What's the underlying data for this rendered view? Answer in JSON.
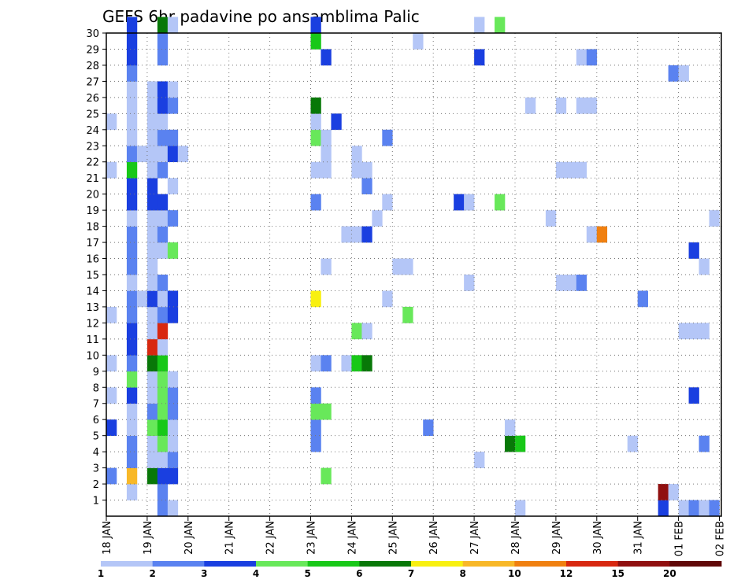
{
  "chart_data": {
    "type": "heatmap",
    "title": "GEFS 6hr padavine po ansamblima Palic",
    "xlabel": "",
    "ylabel": "",
    "x_tick_labels": [
      "18 JAN",
      "19 JAN",
      "20 JAN",
      "21 JAN",
      "22 JAN",
      "23 JAN",
      "24 JAN",
      "25 JAN",
      "26 JAN",
      "27 JAN",
      "28 JAN",
      "29 JAN",
      "30 JAN",
      "31 JAN",
      "01 FEB",
      "02 FEB"
    ],
    "y_tick_labels": [
      "1",
      "2",
      "3",
      "4",
      "5",
      "6",
      "7",
      "8",
      "9",
      "10",
      "11",
      "12",
      "13",
      "14",
      "15",
      "16",
      "17",
      "18",
      "19",
      "20",
      "21",
      "22",
      "23",
      "24",
      "25",
      "26",
      "27",
      "28",
      "29",
      "30"
    ],
    "x_range": [
      "18 JAN 00",
      "02 FEB 00"
    ],
    "x_step_hours": 6,
    "y_range": [
      0,
      30
    ],
    "grid": true,
    "legend_position": "bottom",
    "legend": {
      "labels": [
        "1",
        "2",
        "3",
        "4",
        "5",
        "6",
        "7",
        "8",
        "10",
        "12",
        "15",
        "20"
      ],
      "colors": [
        "#b4c6f7",
        "#5a82f0",
        "#1a3fe0",
        "#68e85a",
        "#18c818",
        "#087808",
        "#f8f010",
        "#f8b828",
        "#f08010",
        "#d82810",
        "#901010",
        "#600808"
      ]
    },
    "cells": [
      {
        "t": "18 JAN 00",
        "m": 5,
        "c": 3
      },
      {
        "t": "18 JAN 00",
        "m": 7,
        "c": 1
      },
      {
        "t": "18 JAN 00",
        "m": 9,
        "c": 1
      },
      {
        "t": "18 JAN 00",
        "m": 12,
        "c": 1
      },
      {
        "t": "18 JAN 00",
        "m": 21,
        "c": 1
      },
      {
        "t": "18 JAN 00",
        "m": 24,
        "c": 1
      },
      {
        "t": "18 JAN 00",
        "m": 2,
        "c": 2
      },
      {
        "t": "18 JAN 12",
        "m": 1,
        "c": 1
      },
      {
        "t": "18 JAN 12",
        "m": 2,
        "c": 8
      },
      {
        "t": "18 JAN 12",
        "m": 3,
        "c": 2
      },
      {
        "t": "18 JAN 12",
        "m": 4,
        "c": 2
      },
      {
        "t": "18 JAN 12",
        "m": 5,
        "c": 1
      },
      {
        "t": "18 JAN 12",
        "m": 6,
        "c": 1
      },
      {
        "t": "18 JAN 12",
        "m": 7,
        "c": 3
      },
      {
        "t": "18 JAN 12",
        "m": 8,
        "c": 4
      },
      {
        "t": "18 JAN 12",
        "m": 9,
        "c": 2
      },
      {
        "t": "18 JAN 12",
        "m": 10,
        "c": 3
      },
      {
        "t": "18 JAN 12",
        "m": 11,
        "c": 3
      },
      {
        "t": "18 JAN 12",
        "m": 12,
        "c": 2
      },
      {
        "t": "18 JAN 12",
        "m": 13,
        "c": 2
      },
      {
        "t": "18 JAN 12",
        "m": 14,
        "c": 1
      },
      {
        "t": "18 JAN 12",
        "m": 15,
        "c": 2
      },
      {
        "t": "18 JAN 12",
        "m": 16,
        "c": 2
      },
      {
        "t": "18 JAN 12",
        "m": 17,
        "c": 2
      },
      {
        "t": "18 JAN 12",
        "m": 18,
        "c": 1
      },
      {
        "t": "18 JAN 12",
        "m": 19,
        "c": 3
      },
      {
        "t": "18 JAN 12",
        "m": 20,
        "c": 3
      },
      {
        "t": "18 JAN 12",
        "m": 21,
        "c": 5
      },
      {
        "t": "18 JAN 12",
        "m": 22,
        "c": 2
      },
      {
        "t": "18 JAN 12",
        "m": 23,
        "c": 1
      },
      {
        "t": "18 JAN 12",
        "m": 24,
        "c": 1
      },
      {
        "t": "18 JAN 12",
        "m": 25,
        "c": 1
      },
      {
        "t": "18 JAN 12",
        "m": 26,
        "c": 1
      },
      {
        "t": "18 JAN 12",
        "m": 27,
        "c": 2
      },
      {
        "t": "18 JAN 12",
        "m": 28,
        "c": 3
      },
      {
        "t": "18 JAN 12",
        "m": 29,
        "c": 3
      },
      {
        "t": "18 JAN 12",
        "m": 30,
        "c": 3
      },
      {
        "t": "18 JAN 18",
        "m": 13,
        "c": 1
      },
      {
        "t": "18 JAN 18",
        "m": 22,
        "c": 1
      },
      {
        "t": "19 JAN 00",
        "m": 2,
        "c": 6
      },
      {
        "t": "19 JAN 00",
        "m": 3,
        "c": 1
      },
      {
        "t": "19 JAN 00",
        "m": 4,
        "c": 1
      },
      {
        "t": "19 JAN 00",
        "m": 5,
        "c": 4
      },
      {
        "t": "19 JAN 00",
        "m": 6,
        "c": 2
      },
      {
        "t": "19 JAN 00",
        "m": 7,
        "c": 1
      },
      {
        "t": "19 JAN 00",
        "m": 8,
        "c": 1
      },
      {
        "t": "19 JAN 00",
        "m": 9,
        "c": 6
      },
      {
        "t": "19 JAN 00",
        "m": 10,
        "c": 10
      },
      {
        "t": "19 JAN 00",
        "m": 11,
        "c": 1
      },
      {
        "t": "19 JAN 00",
        "m": 12,
        "c": 1
      },
      {
        "t": "19 JAN 00",
        "m": 13,
        "c": 3
      },
      {
        "t": "19 JAN 00",
        "m": 14,
        "c": 1
      },
      {
        "t": "19 JAN 00",
        "m": 15,
        "c": 1
      },
      {
        "t": "19 JAN 00",
        "m": 16,
        "c": 1
      },
      {
        "t": "19 JAN 00",
        "m": 17,
        "c": 1
      },
      {
        "t": "19 JAN 00",
        "m": 18,
        "c": 1
      },
      {
        "t": "19 JAN 00",
        "m": 19,
        "c": 3
      },
      {
        "t": "19 JAN 00",
        "m": 20,
        "c": 3
      },
      {
        "t": "19 JAN 00",
        "m": 21,
        "c": 1
      },
      {
        "t": "19 JAN 00",
        "m": 22,
        "c": 1
      },
      {
        "t": "19 JAN 00",
        "m": 23,
        "c": 1
      },
      {
        "t": "19 JAN 00",
        "m": 24,
        "c": 1
      },
      {
        "t": "19 JAN 00",
        "m": 25,
        "c": 1
      },
      {
        "t": "19 JAN 00",
        "m": 26,
        "c": 1
      },
      {
        "t": "19 JAN 06",
        "m": 0,
        "c": 2
      },
      {
        "t": "19 JAN 06",
        "m": 1,
        "c": 2
      },
      {
        "t": "19 JAN 06",
        "m": 2,
        "c": 3
      },
      {
        "t": "19 JAN 06",
        "m": 3,
        "c": 1
      },
      {
        "t": "19 JAN 06",
        "m": 4,
        "c": 4
      },
      {
        "t": "19 JAN 06",
        "m": 5,
        "c": 5
      },
      {
        "t": "19 JAN 06",
        "m": 6,
        "c": 4
      },
      {
        "t": "19 JAN 06",
        "m": 7,
        "c": 4
      },
      {
        "t": "19 JAN 06",
        "m": 8,
        "c": 4
      },
      {
        "t": "19 JAN 06",
        "m": 9,
        "c": 5
      },
      {
        "t": "19 JAN 06",
        "m": 10,
        "c": 1
      },
      {
        "t": "19 JAN 06",
        "m": 11,
        "c": 10
      },
      {
        "t": "19 JAN 06",
        "m": 12,
        "c": 2
      },
      {
        "t": "19 JAN 06",
        "m": 13,
        "c": 1
      },
      {
        "t": "19 JAN 06",
        "m": 14,
        "c": 2
      },
      {
        "t": "19 JAN 06",
        "m": 16,
        "c": 1
      },
      {
        "t": "19 JAN 06",
        "m": 17,
        "c": 2
      },
      {
        "t": "19 JAN 06",
        "m": 18,
        "c": 1
      },
      {
        "t": "19 JAN 06",
        "m": 19,
        "c": 3
      },
      {
        "t": "19 JAN 06",
        "m": 21,
        "c": 2
      },
      {
        "t": "19 JAN 06",
        "m": 22,
        "c": 1
      },
      {
        "t": "19 JAN 06",
        "m": 23,
        "c": 2
      },
      {
        "t": "19 JAN 06",
        "m": 24,
        "c": 1
      },
      {
        "t": "19 JAN 06",
        "m": 25,
        "c": 3
      },
      {
        "t": "19 JAN 06",
        "m": 26,
        "c": 3
      },
      {
        "t": "19 JAN 06",
        "m": 28,
        "c": 2
      },
      {
        "t": "19 JAN 06",
        "m": 29,
        "c": 2
      },
      {
        "t": "19 JAN 06",
        "m": 30,
        "c": 6
      },
      {
        "t": "19 JAN 12",
        "m": 0,
        "c": 1
      },
      {
        "t": "19 JAN 12",
        "m": 2,
        "c": 3
      },
      {
        "t": "19 JAN 12",
        "m": 3,
        "c": 2
      },
      {
        "t": "19 JAN 12",
        "m": 4,
        "c": 1
      },
      {
        "t": "19 JAN 12",
        "m": 5,
        "c": 1
      },
      {
        "t": "19 JAN 12",
        "m": 6,
        "c": 2
      },
      {
        "t": "19 JAN 12",
        "m": 7,
        "c": 2
      },
      {
        "t": "19 JAN 12",
        "m": 8,
        "c": 1
      },
      {
        "t": "19 JAN 12",
        "m": 12,
        "c": 3
      },
      {
        "t": "19 JAN 12",
        "m": 13,
        "c": 3
      },
      {
        "t": "19 JAN 12",
        "m": 16,
        "c": 4
      },
      {
        "t": "19 JAN 12",
        "m": 18,
        "c": 2
      },
      {
        "t": "19 JAN 12",
        "m": 20,
        "c": 1
      },
      {
        "t": "19 JAN 12",
        "m": 22,
        "c": 3
      },
      {
        "t": "19 JAN 12",
        "m": 23,
        "c": 2
      },
      {
        "t": "19 JAN 12",
        "m": 25,
        "c": 2
      },
      {
        "t": "19 JAN 12",
        "m": 26,
        "c": 1
      },
      {
        "t": "19 JAN 12",
        "m": 30,
        "c": 1
      },
      {
        "t": "19 JAN 18",
        "m": 22,
        "c": 1
      },
      {
        "t": "23 JAN 00",
        "m": 4,
        "c": 2
      },
      {
        "t": "23 JAN 00",
        "m": 5,
        "c": 2
      },
      {
        "t": "23 JAN 00",
        "m": 6,
        "c": 4
      },
      {
        "t": "23 JAN 00",
        "m": 7,
        "c": 2
      },
      {
        "t": "23 JAN 00",
        "m": 9,
        "c": 1
      },
      {
        "t": "23 JAN 00",
        "m": 13,
        "c": 7
      },
      {
        "t": "23 JAN 00",
        "m": 19,
        "c": 2
      },
      {
        "t": "23 JAN 00",
        "m": 21,
        "c": 1
      },
      {
        "t": "23 JAN 00",
        "m": 23,
        "c": 4
      },
      {
        "t": "23 JAN 00",
        "m": 24,
        "c": 1
      },
      {
        "t": "23 JAN 00",
        "m": 25,
        "c": 6
      },
      {
        "t": "23 JAN 00",
        "m": 29,
        "c": 5
      },
      {
        "t": "23 JAN 00",
        "m": 30,
        "c": 3
      },
      {
        "t": "23 JAN 06",
        "m": 2,
        "c": 4
      },
      {
        "t": "23 JAN 06",
        "m": 6,
        "c": 4
      },
      {
        "t": "23 JAN 06",
        "m": 9,
        "c": 2
      },
      {
        "t": "23 JAN 06",
        "m": 15,
        "c": 1
      },
      {
        "t": "23 JAN 06",
        "m": 21,
        "c": 1
      },
      {
        "t": "23 JAN 06",
        "m": 22,
        "c": 1
      },
      {
        "t": "23 JAN 06",
        "m": 23,
        "c": 1
      },
      {
        "t": "23 JAN 06",
        "m": 28,
        "c": 3
      },
      {
        "t": "23 JAN 12",
        "m": 24,
        "c": 3
      },
      {
        "t": "23 JAN 18",
        "m": 9,
        "c": 1
      },
      {
        "t": "23 JAN 18",
        "m": 17,
        "c": 1
      },
      {
        "t": "24 JAN 00",
        "m": 9,
        "c": 5
      },
      {
        "t": "24 JAN 00",
        "m": 11,
        "c": 4
      },
      {
        "t": "24 JAN 00",
        "m": 17,
        "c": 1
      },
      {
        "t": "24 JAN 00",
        "m": 21,
        "c": 1
      },
      {
        "t": "24 JAN 00",
        "m": 22,
        "c": 1
      },
      {
        "t": "24 JAN 06",
        "m": 9,
        "c": 6
      },
      {
        "t": "24 JAN 06",
        "m": 11,
        "c": 1
      },
      {
        "t": "24 JAN 06",
        "m": 17,
        "c": 3
      },
      {
        "t": "24 JAN 06",
        "m": 20,
        "c": 2
      },
      {
        "t": "24 JAN 06",
        "m": 21,
        "c": 1
      },
      {
        "t": "24 JAN 12",
        "m": 18,
        "c": 1
      },
      {
        "t": "24 JAN 18",
        "m": 13,
        "c": 1
      },
      {
        "t": "24 JAN 18",
        "m": 19,
        "c": 1
      },
      {
        "t": "24 JAN 18",
        "m": 23,
        "c": 2
      },
      {
        "t": "25 JAN 00",
        "m": 15,
        "c": 1
      },
      {
        "t": "25 JAN 06",
        "m": 12,
        "c": 4
      },
      {
        "t": "25 JAN 06",
        "m": 15,
        "c": 1
      },
      {
        "t": "25 JAN 12",
        "m": 29,
        "c": 1
      },
      {
        "t": "25 JAN 18",
        "m": 5,
        "c": 2
      },
      {
        "t": "26 JAN 12",
        "m": 19,
        "c": 3
      },
      {
        "t": "26 JAN 18",
        "m": 14,
        "c": 1
      },
      {
        "t": "26 JAN 18",
        "m": 19,
        "c": 1
      },
      {
        "t": "27 JAN 00",
        "m": 3,
        "c": 1
      },
      {
        "t": "27 JAN 00",
        "m": 28,
        "c": 3
      },
      {
        "t": "27 JAN 00",
        "m": 30,
        "c": 1
      },
      {
        "t": "27 JAN 12",
        "m": 19,
        "c": 4
      },
      {
        "t": "27 JAN 12",
        "m": 30,
        "c": 4
      },
      {
        "t": "27 JAN 18",
        "m": 4,
        "c": 6
      },
      {
        "t": "27 JAN 18",
        "m": 5,
        "c": 1
      },
      {
        "t": "28 JAN 00",
        "m": 0,
        "c": 1
      },
      {
        "t": "28 JAN 00",
        "m": 4,
        "c": 5
      },
      {
        "t": "28 JAN 06",
        "m": 25,
        "c": 1
      },
      {
        "t": "28 JAN 18",
        "m": 18,
        "c": 1
      },
      {
        "t": "29 JAN 00",
        "m": 14,
        "c": 1
      },
      {
        "t": "29 JAN 00",
        "m": 21,
        "c": 1
      },
      {
        "t": "29 JAN 00",
        "m": 25,
        "c": 1
      },
      {
        "t": "29 JAN 06",
        "m": 14,
        "c": 1
      },
      {
        "t": "29 JAN 06",
        "m": 21,
        "c": 1
      },
      {
        "t": "29 JAN 12",
        "m": 14,
        "c": 2
      },
      {
        "t": "29 JAN 12",
        "m": 21,
        "c": 1
      },
      {
        "t": "29 JAN 12",
        "m": 25,
        "c": 1
      },
      {
        "t": "29 JAN 12",
        "m": 28,
        "c": 1
      },
      {
        "t": "29 JAN 18",
        "m": 17,
        "c": 1
      },
      {
        "t": "29 JAN 18",
        "m": 25,
        "c": 1
      },
      {
        "t": "29 JAN 18",
        "m": 28,
        "c": 2
      },
      {
        "t": "30 JAN 00",
        "m": 17,
        "c": 9
      },
      {
        "t": "30 JAN 18",
        "m": 4,
        "c": 1
      },
      {
        "t": "31 JAN 00",
        "m": 13,
        "c": 2
      },
      {
        "t": "31 JAN 12",
        "m": 0,
        "c": 3
      },
      {
        "t": "31 JAN 12",
        "m": 1,
        "c": 11
      },
      {
        "t": "31 JAN 18",
        "m": 1,
        "c": 1
      },
      {
        "t": "31 JAN 18",
        "m": 27,
        "c": 2
      },
      {
        "t": "01 FEB 00",
        "m": 0,
        "c": 1
      },
      {
        "t": "01 FEB 00",
        "m": 11,
        "c": 1
      },
      {
        "t": "01 FEB 00",
        "m": 27,
        "c": 1
      },
      {
        "t": "01 FEB 06",
        "m": 0,
        "c": 2
      },
      {
        "t": "01 FEB 06",
        "m": 7,
        "c": 3
      },
      {
        "t": "01 FEB 06",
        "m": 11,
        "c": 1
      },
      {
        "t": "01 FEB 06",
        "m": 16,
        "c": 3
      },
      {
        "t": "01 FEB 12",
        "m": 0,
        "c": 1
      },
      {
        "t": "01 FEB 12",
        "m": 4,
        "c": 2
      },
      {
        "t": "01 FEB 12",
        "m": 11,
        "c": 1
      },
      {
        "t": "01 FEB 12",
        "m": 15,
        "c": 1
      },
      {
        "t": "01 FEB 18",
        "m": 0,
        "c": 2
      },
      {
        "t": "01 FEB 18",
        "m": 18,
        "c": 1
      }
    ]
  }
}
